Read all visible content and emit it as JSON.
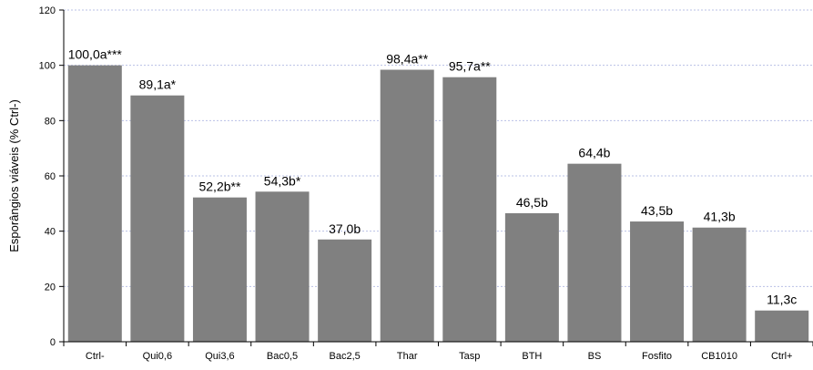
{
  "chart_data": {
    "type": "bar",
    "title": "",
    "xlabel": "",
    "ylabel": "Esporângios viáveis (% Ctrl-)",
    "ylim": [
      0,
      120
    ],
    "yticks": [
      0,
      20,
      40,
      60,
      80,
      100,
      120
    ],
    "grid": true,
    "legend": "none",
    "bar_color": "#808080",
    "grid_color": "#b9c0e6",
    "categories": [
      "Ctrl-",
      "Qui0,6",
      "Qui3,6",
      "Bac0,5",
      "Bac2,5",
      "Thar",
      "Tasp",
      "BTH",
      "BS",
      "Fosfito",
      "CB1010",
      "Ctrl+"
    ],
    "values": [
      100.0,
      89.1,
      52.2,
      54.3,
      37.0,
      98.4,
      95.7,
      46.5,
      64.4,
      43.5,
      41.3,
      11.3
    ],
    "data_labels": [
      "100,0a***",
      "89,1a*",
      "52,2b**",
      "54,3b*",
      "37,0b",
      "98,4a**",
      "95,7a**",
      "46,5b",
      "64,4b",
      "43,5b",
      "41,3b",
      "11,3c"
    ]
  }
}
